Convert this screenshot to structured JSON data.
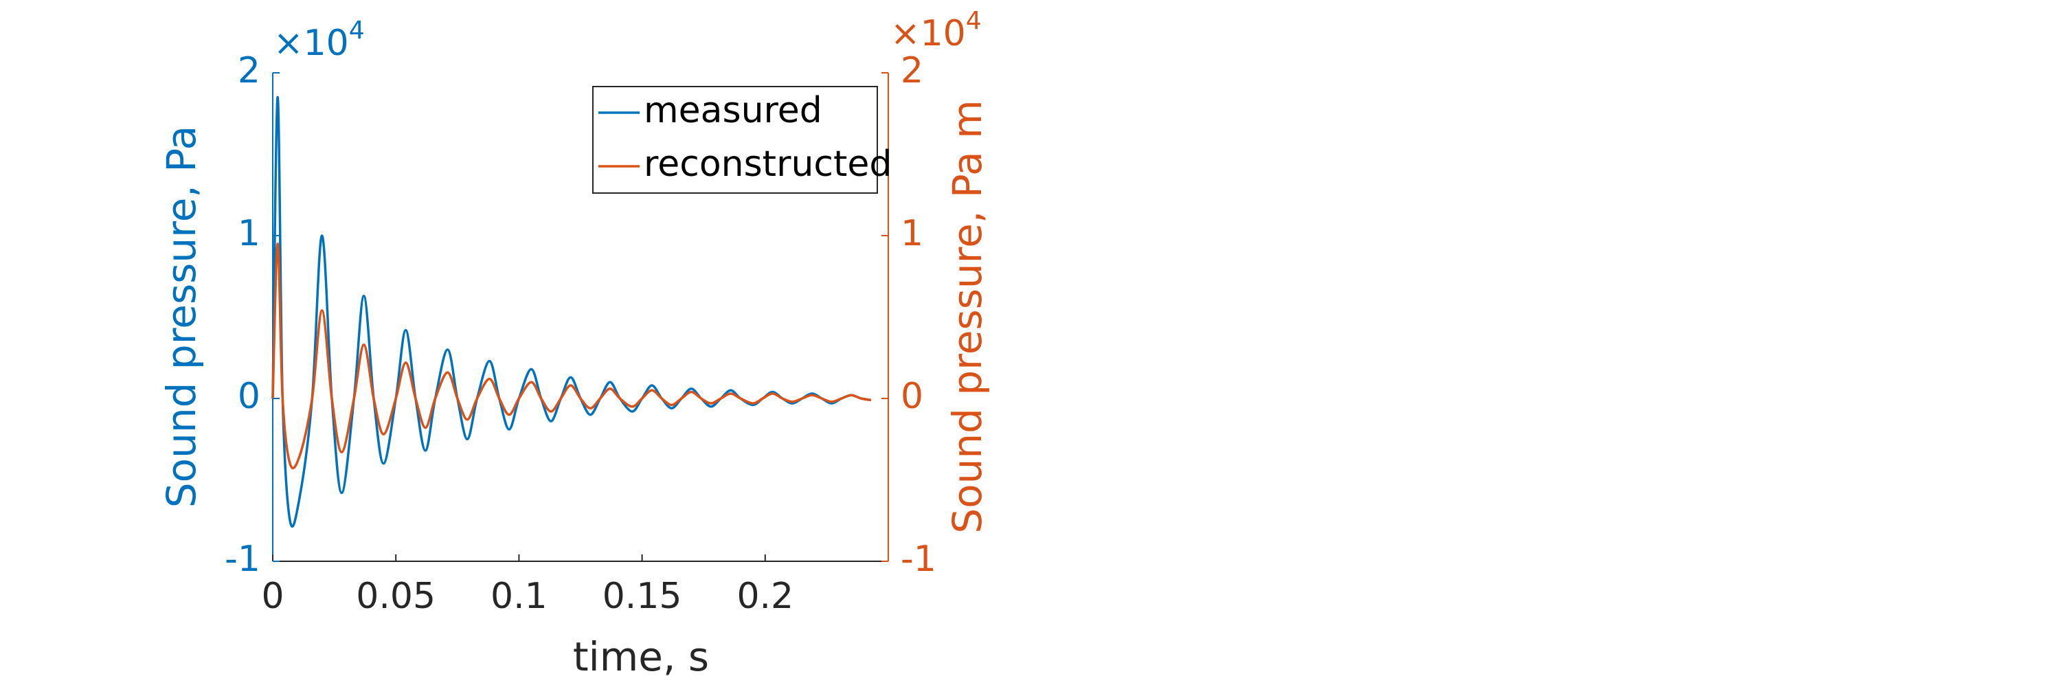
{
  "chart_data": {
    "type": "line",
    "xlabel": "time, s",
    "ylabel": "Sound pressure, Pa",
    "y2label": "Sound pressure, Pa m",
    "y_exponent": {
      "base": "×10",
      "power": "4"
    },
    "y2_exponent": {
      "base": "×10",
      "power": "4"
    },
    "xlim": [
      0,
      0.25
    ],
    "xticks": [
      0,
      0.05,
      0.1,
      0.15,
      0.2
    ],
    "ylim": [
      -1,
      2
    ],
    "yticks": [
      -1,
      0,
      1,
      2
    ],
    "y2lim": [
      -1,
      2
    ],
    "y2ticks": [
      -1,
      0,
      1,
      2
    ],
    "legend": "upper right",
    "x": [
      0,
      0.002,
      0.004,
      0.007,
      0.011,
      0.016,
      0.02,
      0.024,
      0.028,
      0.033,
      0.037,
      0.041,
      0.045,
      0.05,
      0.054,
      0.058,
      0.062,
      0.066,
      0.071,
      0.075,
      0.079,
      0.083,
      0.088,
      0.092,
      0.096,
      0.1,
      0.105,
      0.109,
      0.113,
      0.117,
      0.121,
      0.125,
      0.129,
      0.133,
      0.137,
      0.141,
      0.146,
      0.15,
      0.154,
      0.158,
      0.162,
      0.166,
      0.17,
      0.174,
      0.178,
      0.182,
      0.186,
      0.19,
      0.195,
      0.199,
      0.203,
      0.207,
      0.211,
      0.215,
      0.219,
      0.223,
      0.227,
      0.231,
      0.235,
      0.239,
      0.243
    ],
    "series": [
      {
        "name": "measured",
        "color": "#0072BD",
        "axis": "y",
        "values": [
          0,
          1.85,
          0,
          -0.75,
          -0.6,
          0,
          1.0,
          0,
          -0.58,
          0,
          0.63,
          0,
          -0.4,
          0,
          0.42,
          0,
          -0.32,
          0,
          0.3,
          0,
          -0.25,
          0,
          0.23,
          0,
          -0.19,
          0,
          0.18,
          0,
          -0.14,
          0,
          0.13,
          0,
          -0.1,
          0,
          0.1,
          0,
          -0.08,
          0,
          0.08,
          0,
          -0.06,
          0,
          0.06,
          0,
          -0.05,
          0,
          0.05,
          0,
          -0.04,
          0,
          0.04,
          0,
          -0.03,
          0,
          0.03,
          0,
          -0.03,
          0,
          0.02,
          0,
          -0.01
        ]
      },
      {
        "name": "reconstructed",
        "color": "#D95319",
        "axis": "y2",
        "values": [
          0,
          0.95,
          0,
          -0.4,
          -0.35,
          0,
          0.54,
          0,
          -0.33,
          0,
          0.33,
          0,
          -0.22,
          0,
          0.22,
          0,
          -0.18,
          0,
          0.16,
          0,
          -0.13,
          0,
          0.12,
          0,
          -0.1,
          0,
          0.1,
          0,
          -0.08,
          0,
          0.08,
          0,
          -0.06,
          0,
          0.06,
          0,
          -0.05,
          0,
          0.05,
          0,
          -0.04,
          0,
          0.04,
          0,
          -0.03,
          0,
          0.03,
          0,
          -0.03,
          0,
          0.03,
          0,
          -0.02,
          0,
          0.02,
          0,
          -0.02,
          0,
          0.02,
          0,
          -0.01
        ]
      }
    ]
  }
}
